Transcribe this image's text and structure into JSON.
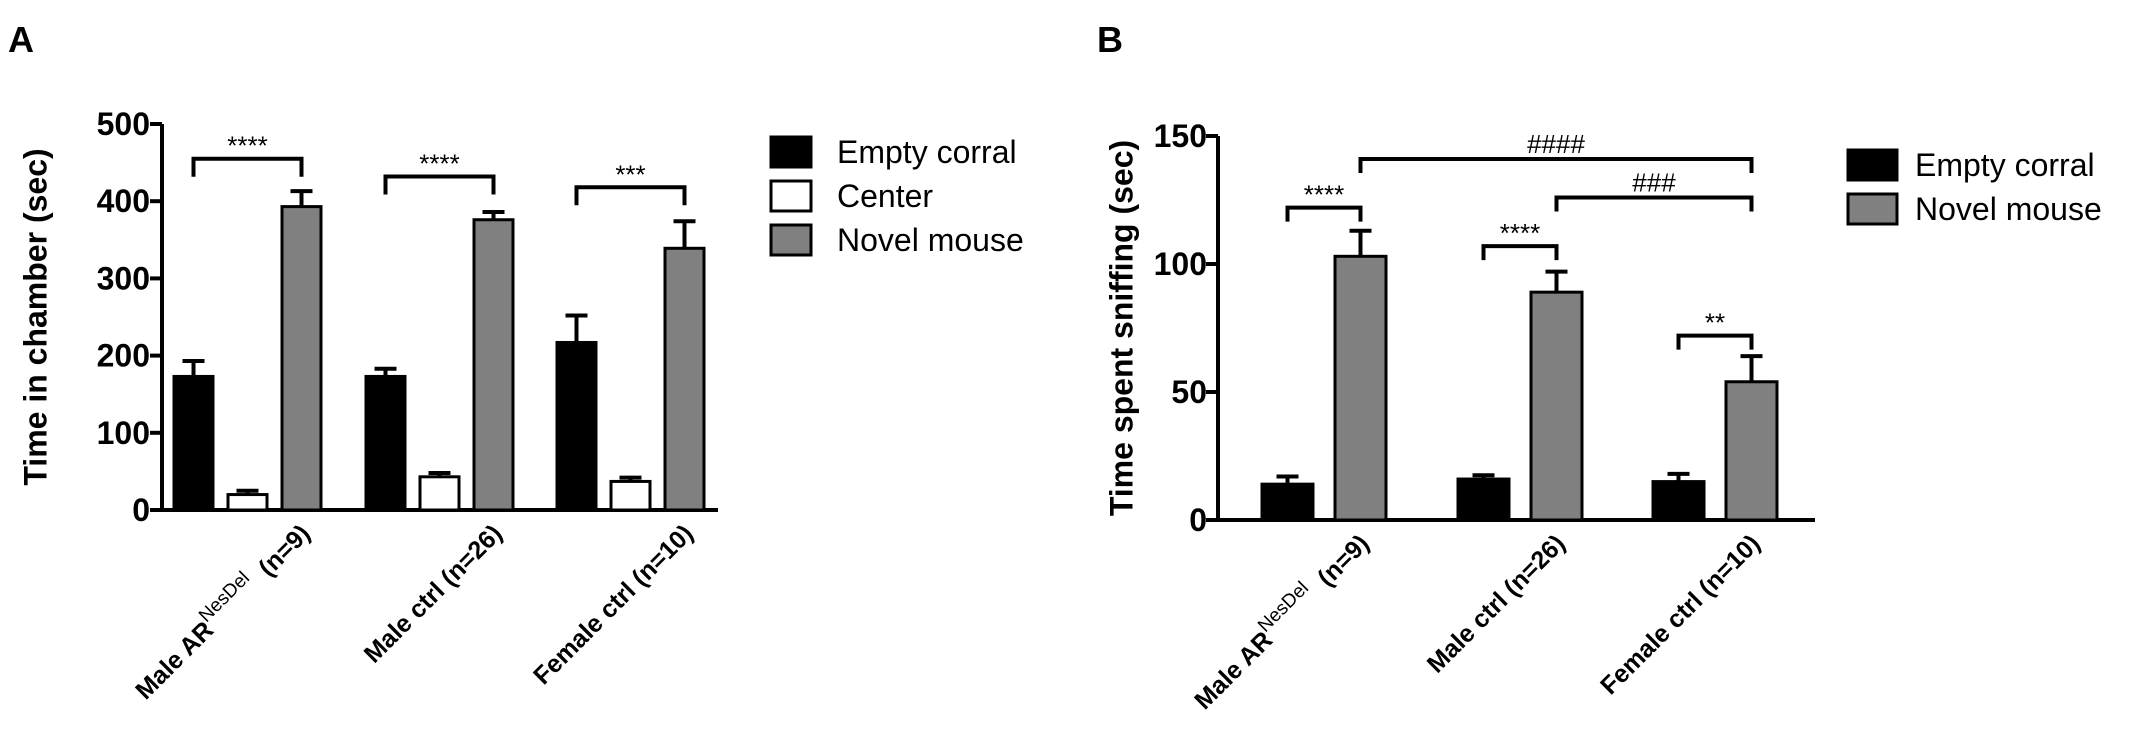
{
  "chart_data": [
    {
      "panel": "A",
      "type": "bar",
      "ylabel": "Time in chamber (sec)",
      "ylim": [
        0,
        500
      ],
      "yticks": [
        0,
        100,
        200,
        300,
        400,
        500
      ],
      "categories": [
        {
          "main": "Male AR",
          "sup": "NesDel",
          "suffix": "(n=9)"
        },
        {
          "main": "Male ctrl (n=26)",
          "sup": "",
          "suffix": ""
        },
        {
          "main": "Female ctrl (n=10)",
          "sup": "",
          "suffix": ""
        }
      ],
      "series": [
        {
          "name": "Empty corral",
          "color": "#000000",
          "values": [
            173,
            173,
            217
          ],
          "errors": [
            20,
            10,
            35
          ]
        },
        {
          "name": "Center",
          "color": "#ffffff",
          "values": [
            20,
            43,
            37
          ],
          "errors": [
            5,
            5,
            5
          ]
        },
        {
          "name": "Novel mouse",
          "color": "#808080",
          "values": [
            393,
            376,
            339
          ],
          "errors": [
            20,
            10,
            35
          ]
        }
      ],
      "significance": [
        {
          "group": 0,
          "from": 0,
          "to": 2,
          "y": 455,
          "label": "****"
        },
        {
          "group": 1,
          "from": 0,
          "to": 2,
          "y": 432,
          "label": "****"
        },
        {
          "group": 2,
          "from": 0,
          "to": 2,
          "y": 418,
          "label": "***"
        }
      ],
      "legend_position": "right"
    },
    {
      "panel": "B",
      "type": "bar",
      "ylabel": "Time spent sniffing (sec)",
      "ylim": [
        0,
        150
      ],
      "yticks": [
        0,
        50,
        100,
        150
      ],
      "categories": [
        {
          "main": "Male AR",
          "sup": "NesDel",
          "suffix": "(n=9)"
        },
        {
          "main": "Male ctrl (n=26)",
          "sup": "",
          "suffix": ""
        },
        {
          "main": "Female ctrl (n=10)",
          "sup": "",
          "suffix": ""
        }
      ],
      "series": [
        {
          "name": "Empty corral",
          "color": "#000000",
          "values": [
            14,
            16,
            15
          ],
          "errors": [
            3,
            1.5,
            3
          ]
        },
        {
          "name": "Novel mouse",
          "color": "#808080",
          "values": [
            103,
            89,
            54
          ],
          "errors": [
            10,
            8,
            10
          ]
        }
      ],
      "significance": [
        {
          "group": 0,
          "from": 0,
          "to": 1,
          "y": 122,
          "label": "****"
        },
        {
          "group": 1,
          "from": 0,
          "to": 1,
          "y": 107,
          "label": "****"
        },
        {
          "group": 2,
          "from": 0,
          "to": 1,
          "y": 72,
          "label": "**"
        }
      ],
      "comparisons": [
        {
          "from_group": 0,
          "to_group": 2,
          "series": 1,
          "y": 141,
          "label": "####"
        },
        {
          "from_group": 1,
          "to_group": 2,
          "series": 1,
          "y": 126,
          "label": "###"
        }
      ],
      "legend_position": "right"
    }
  ]
}
